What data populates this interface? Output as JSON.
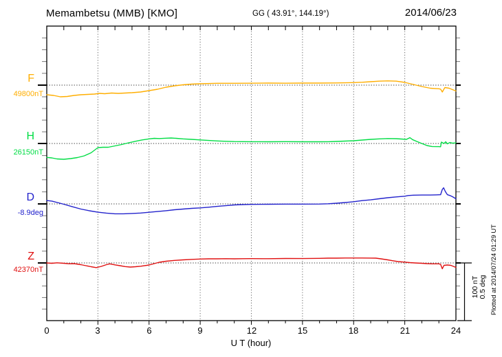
{
  "header": {
    "title": "Memambetsu (MMB)  [KMO]",
    "coords": "GG ( 43.91°, 144.19°)",
    "date": "2014/06/23"
  },
  "footer": {
    "plotted_at": "Plotted at 2014/07/24 01:29 UT"
  },
  "scalebar": {
    "nt_label": "100 nT",
    "deg_label": "0.5 deg"
  },
  "chart_data": {
    "type": "line",
    "title": "Memambetsu (MMB)  [KMO]",
    "xlabel": "U T (hour)",
    "x_range": [
      0,
      24
    ],
    "x_ticks": [
      0,
      3,
      6,
      9,
      12,
      15,
      18,
      21,
      24
    ],
    "x_tick_labels": [
      "0",
      "3",
      "6",
      "9",
      "12",
      "15",
      "18",
      "21",
      "24"
    ],
    "grid": "dotted vertical at 3h intervals, dotted horizontal at each channel baseline",
    "scale": "100 nT and 0.5 deg per 85 px (right-hand scale bar)",
    "series": [
      {
        "name": "F",
        "unit": "nT",
        "baseline_label": "49800nT",
        "baseline_value": 49800,
        "color": "#FFAE00",
        "points": [
          [
            0,
            -16.5
          ],
          [
            0.4,
            -17.6
          ],
          [
            0.8,
            -20
          ],
          [
            1.2,
            -19.4
          ],
          [
            1.6,
            -17.6
          ],
          [
            2,
            -16.5
          ],
          [
            2.4,
            -15.9
          ],
          [
            2.8,
            -15.3
          ],
          [
            3.1,
            -14.1
          ],
          [
            3.4,
            -14.7
          ],
          [
            3.8,
            -13.5
          ],
          [
            4.2,
            -14.1
          ],
          [
            4.6,
            -13.5
          ],
          [
            5,
            -12.9
          ],
          [
            5.5,
            -11.8
          ],
          [
            6,
            -9.4
          ],
          [
            6.5,
            -7.1
          ],
          [
            7,
            -3.5
          ],
          [
            7.5,
            -1.2
          ],
          [
            8,
            0.6
          ],
          [
            8.5,
            1.8
          ],
          [
            9,
            2.4
          ],
          [
            10,
            3.2
          ],
          [
            11,
            3.2
          ],
          [
            12,
            3.3
          ],
          [
            13,
            3.5
          ],
          [
            14,
            3.3
          ],
          [
            15,
            3.5
          ],
          [
            16,
            3.5
          ],
          [
            17,
            3.8
          ],
          [
            18,
            4.4
          ],
          [
            18.5,
            4.9
          ],
          [
            19,
            5.9
          ],
          [
            19.5,
            6.8
          ],
          [
            20,
            7.3
          ],
          [
            20.5,
            6.8
          ],
          [
            21,
            4.7
          ],
          [
            21.5,
            1.2
          ],
          [
            22,
            -2.4
          ],
          [
            22.5,
            -5.3
          ],
          [
            23,
            -6.2
          ],
          [
            23.1,
            -6.8
          ],
          [
            23.2,
            -11.8
          ],
          [
            23.35,
            -4.1
          ],
          [
            23.6,
            -5.3
          ],
          [
            23.8,
            -7.6
          ],
          [
            24,
            -10
          ]
        ]
      },
      {
        "name": "H",
        "unit": "nT",
        "baseline_label": "26150nT",
        "baseline_value": 26150,
        "color": "#00DD44",
        "points": [
          [
            0,
            -23.9
          ],
          [
            0.3,
            -24.7
          ],
          [
            0.6,
            -26.5
          ],
          [
            1,
            -27.1
          ],
          [
            1.4,
            -25.9
          ],
          [
            1.8,
            -24.1
          ],
          [
            2.2,
            -21.2
          ],
          [
            2.6,
            -15.9
          ],
          [
            3,
            -7.1
          ],
          [
            3.3,
            -6.5
          ],
          [
            3.6,
            -6.5
          ],
          [
            4,
            -4.1
          ],
          [
            4.4,
            -1.8
          ],
          [
            4.8,
            1.2
          ],
          [
            5.2,
            3.8
          ],
          [
            5.6,
            6.1
          ],
          [
            6,
            7.9
          ],
          [
            6.3,
            8.8
          ],
          [
            6.6,
            8.5
          ],
          [
            7,
            9.1
          ],
          [
            7.3,
            9.4
          ],
          [
            7.6,
            8.8
          ],
          [
            8,
            7.9
          ],
          [
            8.5,
            7.1
          ],
          [
            9,
            6.1
          ],
          [
            9.5,
            5.2
          ],
          [
            10,
            4.4
          ],
          [
            10.5,
            3.8
          ],
          [
            11,
            3.3
          ],
          [
            11.5,
            3.2
          ],
          [
            12,
            3.1
          ],
          [
            13,
            2.9
          ],
          [
            14,
            3.2
          ],
          [
            15,
            2.9
          ],
          [
            16,
            2.9
          ],
          [
            16.5,
            3.1
          ],
          [
            17,
            3.5
          ],
          [
            17.5,
            4.1
          ],
          [
            18,
            4.7
          ],
          [
            18.5,
            5.9
          ],
          [
            19,
            7.1
          ],
          [
            19.5,
            7.9
          ],
          [
            20,
            8.5
          ],
          [
            20.5,
            8.2
          ],
          [
            20.8,
            7.6
          ],
          [
            21.1,
            7.1
          ],
          [
            21.3,
            10
          ],
          [
            21.45,
            6.7
          ],
          [
            21.7,
            3.5
          ],
          [
            22,
            0
          ],
          [
            22.3,
            -3.5
          ],
          [
            22.6,
            -5.2
          ],
          [
            23,
            -5.4
          ],
          [
            23.1,
            -5.6
          ],
          [
            23.15,
            2.4
          ],
          [
            23.3,
            0
          ],
          [
            23.4,
            2.9
          ],
          [
            23.5,
            -0.6
          ],
          [
            23.65,
            1.8
          ],
          [
            23.8,
            0.6
          ],
          [
            24,
            0.9
          ]
        ]
      },
      {
        "name": "D",
        "unit": "deg",
        "baseline_label": "-8.9deg",
        "baseline_value": -8.9,
        "color": "#2222CC",
        "points": [
          [
            0,
            0.029
          ],
          [
            0.3,
            0.024
          ],
          [
            0.7,
            0.009
          ],
          [
            1,
            -0.003
          ],
          [
            1.5,
            -0.024
          ],
          [
            2,
            -0.044
          ],
          [
            2.5,
            -0.059
          ],
          [
            3,
            -0.071
          ],
          [
            3.5,
            -0.079
          ],
          [
            4,
            -0.085
          ],
          [
            4.5,
            -0.085
          ],
          [
            5,
            -0.082
          ],
          [
            5.5,
            -0.078
          ],
          [
            6,
            -0.072
          ],
          [
            6.5,
            -0.065
          ],
          [
            7,
            -0.058
          ],
          [
            7.5,
            -0.05
          ],
          [
            8,
            -0.044
          ],
          [
            8.5,
            -0.038
          ],
          [
            9,
            -0.034
          ],
          [
            9.5,
            -0.028
          ],
          [
            10,
            -0.021
          ],
          [
            10.5,
            -0.015
          ],
          [
            11,
            -0.009
          ],
          [
            11.5,
            -0.006
          ],
          [
            12,
            -0.004
          ],
          [
            13,
            -0.003
          ],
          [
            14,
            -0.002
          ],
          [
            15,
            -0.002
          ],
          [
            16,
            -0.001
          ],
          [
            16.5,
            0.001
          ],
          [
            17,
            0.006
          ],
          [
            17.5,
            0.012
          ],
          [
            18,
            0.019
          ],
          [
            18.5,
            0.028
          ],
          [
            19,
            0.035
          ],
          [
            19.5,
            0.044
          ],
          [
            20,
            0.053
          ],
          [
            20.5,
            0.06
          ],
          [
            21,
            0.066
          ],
          [
            21.2,
            0.072
          ],
          [
            21.5,
            0.075
          ],
          [
            22,
            0.076
          ],
          [
            22.5,
            0.076
          ],
          [
            23,
            0.078
          ],
          [
            23.1,
            0.079
          ],
          [
            23.2,
            0.124
          ],
          [
            23.28,
            0.138
          ],
          [
            23.38,
            0.106
          ],
          [
            23.5,
            0.079
          ],
          [
            23.65,
            0.072
          ],
          [
            23.8,
            0.062
          ],
          [
            24,
            0.044
          ]
        ]
      },
      {
        "name": "Z",
        "unit": "nT",
        "baseline_label": "42370nT",
        "baseline_value": 42370,
        "color": "#E01010",
        "points": [
          [
            0,
            0
          ],
          [
            0.3,
            -0.6
          ],
          [
            0.6,
            0.2
          ],
          [
            1,
            -0.6
          ],
          [
            1.3,
            -1.4
          ],
          [
            1.6,
            -1.2
          ],
          [
            2,
            -2.9
          ],
          [
            2.3,
            -4.7
          ],
          [
            2.6,
            -6.5
          ],
          [
            2.9,
            -8
          ],
          [
            3.2,
            -5.9
          ],
          [
            3.5,
            -2.9
          ],
          [
            3.7,
            -1.5
          ],
          [
            4,
            -3.3
          ],
          [
            4.3,
            -4.7
          ],
          [
            4.6,
            -6.2
          ],
          [
            4.9,
            -7.1
          ],
          [
            5.2,
            -6.5
          ],
          [
            5.5,
            -5.6
          ],
          [
            6,
            -3.5
          ],
          [
            6.3,
            -1.2
          ],
          [
            6.6,
            1.2
          ],
          [
            7,
            2.9
          ],
          [
            7.5,
            4.4
          ],
          [
            8,
            5.3
          ],
          [
            8.5,
            6.1
          ],
          [
            9,
            6.7
          ],
          [
            9.5,
            7.1
          ],
          [
            10,
            7.1
          ],
          [
            10.5,
            7.3
          ],
          [
            11,
            7.1
          ],
          [
            11.5,
            7.3
          ],
          [
            12,
            7.4
          ],
          [
            13,
            7.3
          ],
          [
            14,
            7.6
          ],
          [
            15,
            7.5
          ],
          [
            16,
            7.9
          ],
          [
            16.5,
            8.2
          ],
          [
            17,
            8.2
          ],
          [
            17.5,
            8.5
          ],
          [
            18,
            8.5
          ],
          [
            18.5,
            8.5
          ],
          [
            19,
            8.4
          ],
          [
            19.3,
            8.2
          ],
          [
            19.6,
            7.1
          ],
          [
            20,
            5.3
          ],
          [
            20.3,
            3.8
          ],
          [
            20.6,
            2.4
          ],
          [
            21,
            1.4
          ],
          [
            21.3,
            0.6
          ],
          [
            21.6,
            0
          ],
          [
            22,
            -0.6
          ],
          [
            22.3,
            -1.2
          ],
          [
            22.6,
            -1.5
          ],
          [
            23,
            -1.5
          ],
          [
            23.1,
            -2.4
          ],
          [
            23.2,
            -10
          ],
          [
            23.3,
            -4.1
          ],
          [
            23.5,
            -3.5
          ],
          [
            23.7,
            -4.1
          ],
          [
            23.85,
            -5.9
          ],
          [
            24,
            -7.6
          ]
        ]
      }
    ]
  }
}
